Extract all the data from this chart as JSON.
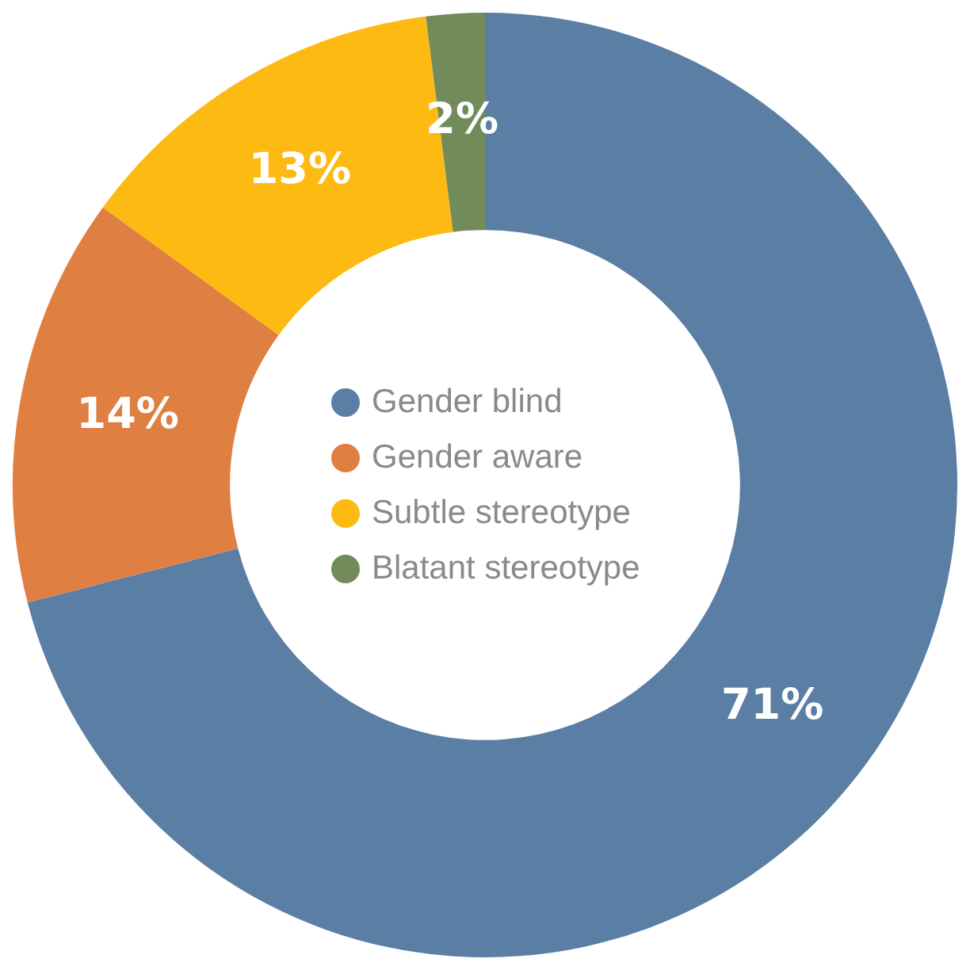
{
  "chart_data": {
    "type": "donut",
    "categories": [
      "Gender blind",
      "Gender aware",
      "Subtle stereotype",
      "Blatant stereotype"
    ],
    "values": [
      71,
      14,
      13,
      2
    ],
    "colors": [
      "#5b7ea5",
      "#e07f42",
      "#fdba12",
      "#718b5a"
    ],
    "value_labels": [
      "71%",
      "14%",
      "13%",
      "2%"
    ],
    "legend": "center"
  }
}
